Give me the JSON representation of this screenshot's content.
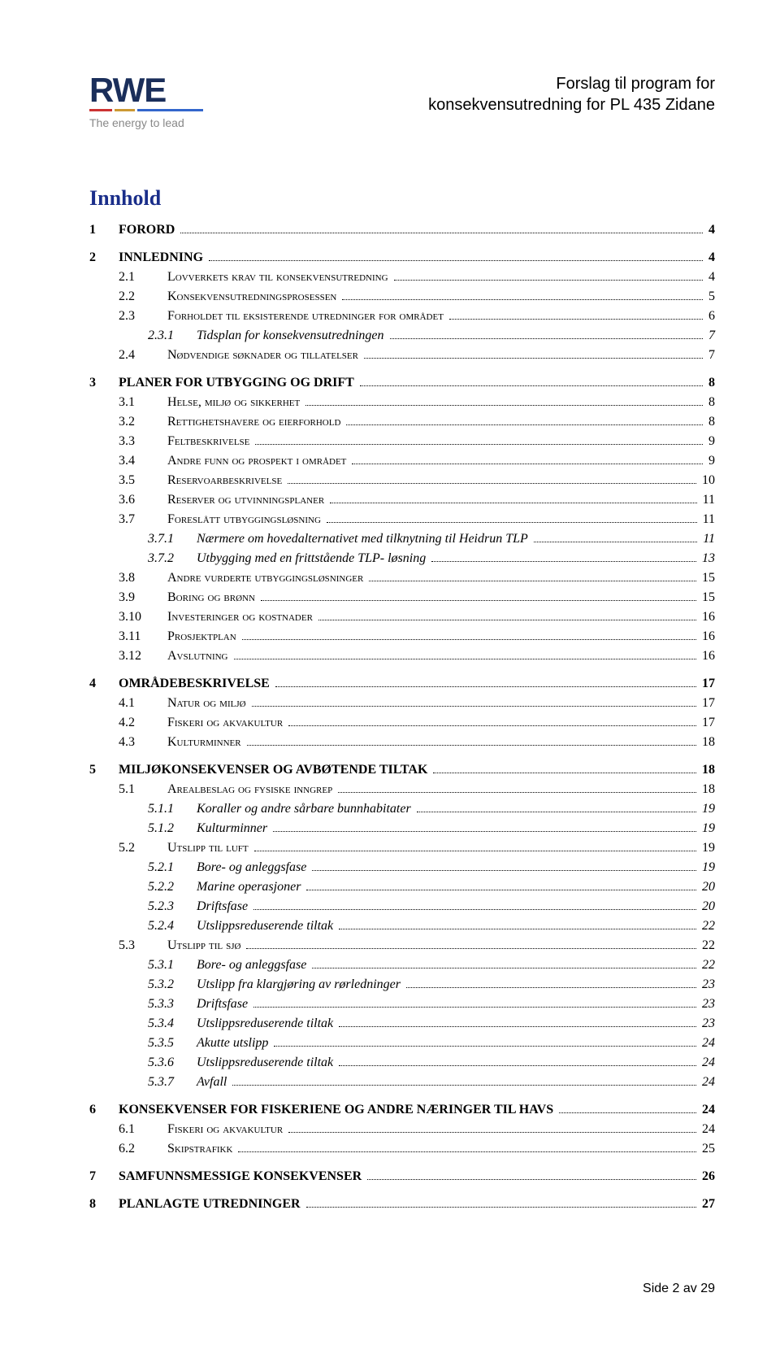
{
  "header": {
    "logo_text": "RWE",
    "tagline": "The energy to lead",
    "title_line1": "Forslag til program for",
    "title_line2": "konsekvensutredning for PL 435 Zidane"
  },
  "toc_heading": "Innhold",
  "footer": "Side 2 av 29",
  "toc": [
    {
      "level": 1,
      "num": "1",
      "title": "FORORD",
      "page": "4"
    },
    {
      "level": 1,
      "num": "2",
      "title": "INNLEDNING",
      "page": "4"
    },
    {
      "level": 2,
      "num": "2.1",
      "title": "Lovverkets krav til konsekvensutredning",
      "page": "4"
    },
    {
      "level": 2,
      "num": "2.2",
      "title": "Konsekvensutredningsprosessen",
      "page": "5"
    },
    {
      "level": 2,
      "num": "2.3",
      "title": "Forholdet til eksisterende utredninger for området",
      "page": "6"
    },
    {
      "level": 3,
      "num": "2.3.1",
      "title": "Tidsplan for konsekvensutredningen",
      "page": "7"
    },
    {
      "level": 2,
      "num": "2.4",
      "title": "Nødvendige søknader og tillatelser",
      "page": "7"
    },
    {
      "level": 1,
      "num": "3",
      "title": "PLANER FOR UTBYGGING OG DRIFT",
      "page": "8"
    },
    {
      "level": 2,
      "num": "3.1",
      "title": "Helse, miljø og sikkerhet",
      "page": "8"
    },
    {
      "level": 2,
      "num": "3.2",
      "title": "Rettighetshavere og eierforhold",
      "page": "8"
    },
    {
      "level": 2,
      "num": "3.3",
      "title": "Feltbeskrivelse",
      "page": "9"
    },
    {
      "level": 2,
      "num": "3.4",
      "title": "Andre funn og prospekt i området",
      "page": "9"
    },
    {
      "level": 2,
      "num": "3.5",
      "title": "Reservoarbeskrivelse",
      "page": "10"
    },
    {
      "level": 2,
      "num": "3.6",
      "title": "Reserver og utvinningsplaner",
      "page": "11"
    },
    {
      "level": 2,
      "num": "3.7",
      "title": "Foreslått utbyggingsløsning",
      "page": "11"
    },
    {
      "level": 3,
      "num": "3.7.1",
      "title": "Nærmere om hovedalternativet med tilknytning til Heidrun TLP",
      "page": "11"
    },
    {
      "level": 3,
      "num": "3.7.2",
      "title": "Utbygging med en frittstående TLP- løsning",
      "page": "13"
    },
    {
      "level": 2,
      "num": "3.8",
      "title": "Andre vurderte utbyggingsløsninger",
      "page": "15"
    },
    {
      "level": 2,
      "num": "3.9",
      "title": "Boring og brønn",
      "page": "15"
    },
    {
      "level": 2,
      "num": "3.10",
      "title": "Investeringer og kostnader",
      "page": "16"
    },
    {
      "level": 2,
      "num": "3.11",
      "title": "Prosjektplan",
      "page": "16"
    },
    {
      "level": 2,
      "num": "3.12",
      "title": "Avslutning",
      "page": "16"
    },
    {
      "level": 1,
      "num": "4",
      "title": "OMRÅDEBESKRIVELSE",
      "page": "17"
    },
    {
      "level": 2,
      "num": "4.1",
      "title": "Natur og miljø",
      "page": "17"
    },
    {
      "level": 2,
      "num": "4.2",
      "title": "Fiskeri og akvakultur",
      "page": "17"
    },
    {
      "level": 2,
      "num": "4.3",
      "title": "Kulturminner",
      "page": "18"
    },
    {
      "level": 1,
      "num": "5",
      "title": "MILJØKONSEKVENSER OG AVBØTENDE TILTAK",
      "page": "18"
    },
    {
      "level": 2,
      "num": "5.1",
      "title": "Arealbeslag og fysiske inngrep",
      "page": "18"
    },
    {
      "level": 3,
      "num": "5.1.1",
      "title": "Koraller og andre sårbare bunnhabitater",
      "page": "19"
    },
    {
      "level": 3,
      "num": "5.1.2",
      "title": "Kulturminner",
      "page": "19"
    },
    {
      "level": 2,
      "num": "5.2",
      "title": "Utslipp til luft",
      "page": "19"
    },
    {
      "level": 3,
      "num": "5.2.1",
      "title": "Bore- og anleggsfase",
      "page": "19"
    },
    {
      "level": 3,
      "num": "5.2.2",
      "title": "Marine operasjoner",
      "page": "20"
    },
    {
      "level": 3,
      "num": "5.2.3",
      "title": "Driftsfase",
      "page": "20"
    },
    {
      "level": 3,
      "num": "5.2.4",
      "title": "Utslippsreduserende tiltak",
      "page": "22"
    },
    {
      "level": 2,
      "num": "5.3",
      "title": "Utslipp til sjø",
      "page": "22"
    },
    {
      "level": 3,
      "num": "5.3.1",
      "title": "Bore- og anleggsfase",
      "page": "22"
    },
    {
      "level": 3,
      "num": "5.3.2",
      "title": "Utslipp fra klargjøring av rørledninger",
      "page": "23"
    },
    {
      "level": 3,
      "num": "5.3.3",
      "title": "Driftsfase",
      "page": "23"
    },
    {
      "level": 3,
      "num": "5.3.4",
      "title": "Utslippsreduserende tiltak",
      "page": "23"
    },
    {
      "level": 3,
      "num": "5.3.5",
      "title": "Akutte utslipp",
      "page": "24"
    },
    {
      "level": 3,
      "num": "5.3.6",
      "title": "Utslippsreduserende tiltak",
      "page": "24"
    },
    {
      "level": 3,
      "num": "5.3.7",
      "title": "Avfall",
      "page": "24"
    },
    {
      "level": 1,
      "num": "6",
      "title": "KONSEKVENSER FOR FISKERIENE OG ANDRE NÆRINGER TIL HAVS",
      "page": "24"
    },
    {
      "level": 2,
      "num": "6.1",
      "title": "Fiskeri og akvakultur",
      "page": "24"
    },
    {
      "level": 2,
      "num": "6.2",
      "title": "Skipstrafikk",
      "page": "25"
    },
    {
      "level": 1,
      "num": "7",
      "title": "SAMFUNNSMESSIGE KONSEKVENSER",
      "page": "26"
    },
    {
      "level": 1,
      "num": "8",
      "title": "PLANLAGTE UTREDNINGER",
      "page": "27"
    }
  ]
}
